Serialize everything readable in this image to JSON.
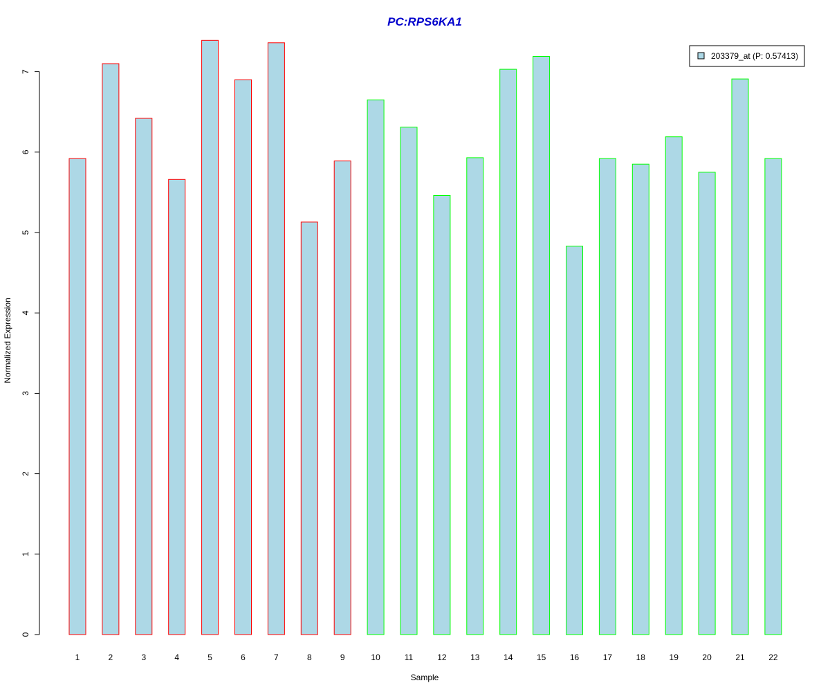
{
  "chart_data": {
    "type": "bar",
    "title": "PC:RPS6KA1",
    "xlabel": "Sample",
    "ylabel": "Normalized Expression",
    "categories": [
      "1",
      "2",
      "3",
      "4",
      "5",
      "6",
      "7",
      "8",
      "9",
      "10",
      "11",
      "12",
      "13",
      "14",
      "15",
      "16",
      "17",
      "18",
      "19",
      "20",
      "21",
      "22"
    ],
    "values": [
      5.92,
      7.1,
      6.42,
      5.66,
      7.39,
      6.9,
      7.36,
      5.13,
      5.89,
      6.65,
      6.31,
      5.46,
      5.93,
      7.03,
      7.19,
      4.83,
      5.92,
      5.85,
      6.19,
      5.75,
      6.91,
      5.92
    ],
    "groups": [
      "red",
      "red",
      "red",
      "red",
      "red",
      "red",
      "red",
      "red",
      "red",
      "green",
      "green",
      "green",
      "green",
      "green",
      "green",
      "green",
      "green",
      "green",
      "green",
      "green",
      "green",
      "green"
    ],
    "ylim": [
      0,
      7.5
    ],
    "yticks": [
      0,
      1,
      2,
      3,
      4,
      5,
      6,
      7
    ],
    "legend": {
      "label": "203379_at (P: 0.57413)",
      "position": "top-right"
    },
    "grid": false
  },
  "colors": {
    "bar_fill": "#add8e6",
    "group_red": "#ff0000",
    "group_green": "#00ff00",
    "title": "#0000cc",
    "axis": "#000000"
  }
}
